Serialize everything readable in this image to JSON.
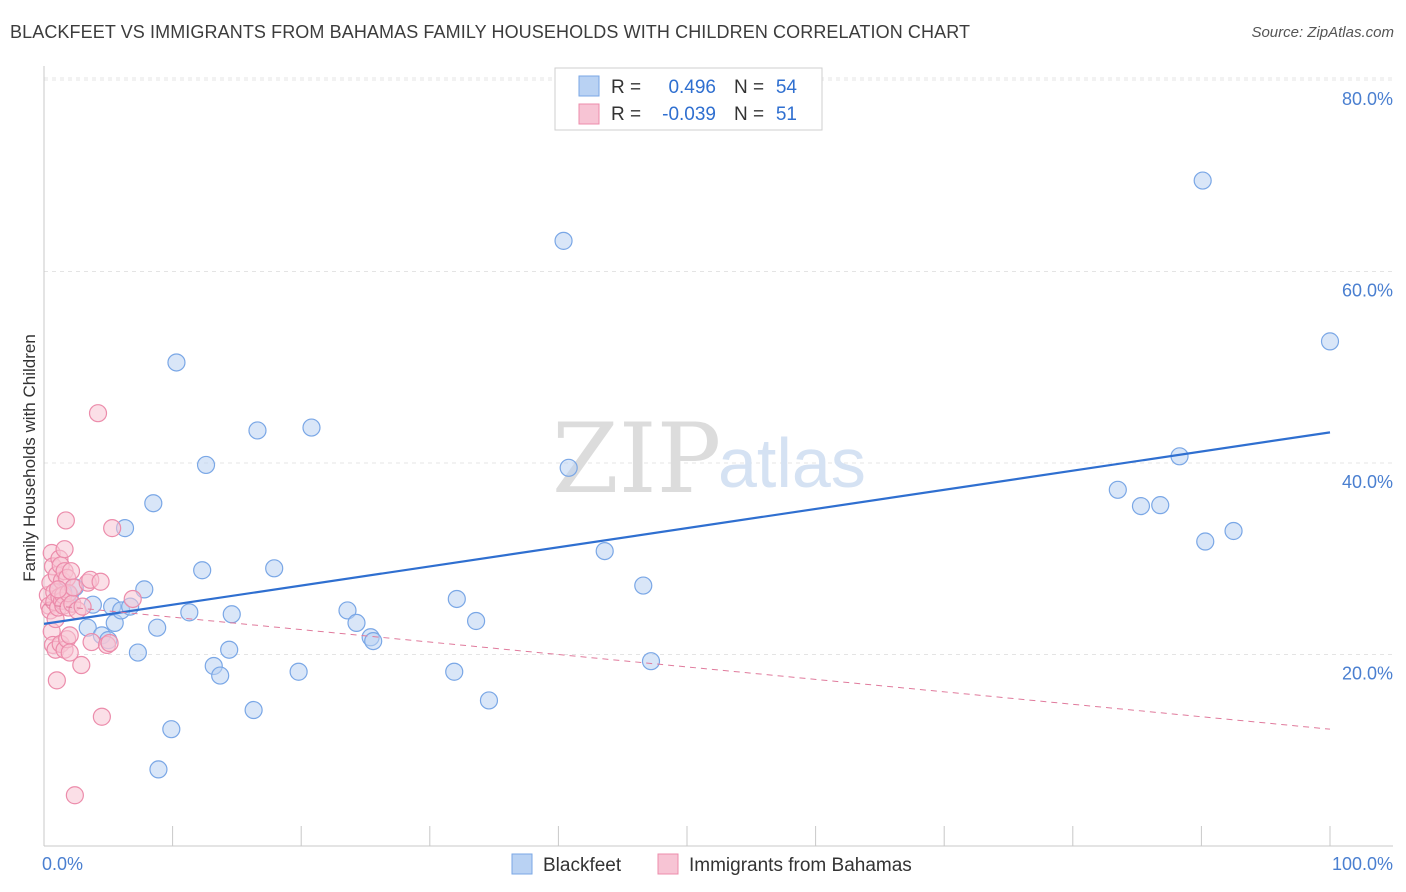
{
  "title": "BLACKFEET VS IMMIGRANTS FROM BAHAMAS FAMILY HOUSEHOLDS WITH CHILDREN CORRELATION CHART",
  "source": "Source: ZipAtlas.com",
  "watermark": {
    "zip": "ZIP",
    "atlas": "atlas"
  },
  "legend": {
    "r_label": "R =",
    "n_label": "N =",
    "rows": [
      {
        "r": "0.496",
        "n": "54",
        "color": "#7aa7e6",
        "fill": "#b9d2f3"
      },
      {
        "r": "-0.039",
        "n": "51",
        "color": "#ec8cab",
        "fill": "#f7c4d4"
      }
    ]
  },
  "chart_data": {
    "type": "scatter",
    "title": "BLACKFEET VS IMMIGRANTS FROM BAHAMAS FAMILY HOUSEHOLDS WITH CHILDREN CORRELATION CHART",
    "xlabel": "",
    "ylabel": "Family Households with Children",
    "xlim": [
      0,
      100
    ],
    "ylim": [
      0,
      82
    ],
    "x_tick_labels": [
      "0.0%",
      "100.0%"
    ],
    "y_ticks": [
      20,
      40,
      60,
      80
    ],
    "y_tick_labels": [
      "20.0%",
      "40.0%",
      "60.0%",
      "80.0%"
    ],
    "series": [
      {
        "name": "Blackfeet",
        "color": "#7aa7e6",
        "fill": "#b9d2f3",
        "line": "#2f6fd0",
        "trend": {
          "x0": 0,
          "y0": 23.2,
          "x1": 100,
          "y1": 43.2
        },
        "points": [
          [
            1.1,
            26.5
          ],
          [
            1.8,
            25.5
          ],
          [
            2.0,
            26.2
          ],
          [
            2.4,
            27.0
          ],
          [
            3.4,
            22.8
          ],
          [
            3.8,
            25.2
          ],
          [
            4.5,
            22.0
          ],
          [
            5.0,
            21.5
          ],
          [
            5.3,
            25.0
          ],
          [
            5.5,
            23.3
          ],
          [
            6.0,
            24.6
          ],
          [
            6.3,
            33.2
          ],
          [
            7.3,
            20.2
          ],
          [
            7.8,
            26.8
          ],
          [
            8.5,
            35.8
          ],
          [
            8.8,
            22.8
          ],
          [
            9.9,
            12.2
          ],
          [
            10.3,
            50.5
          ],
          [
            11.3,
            24.4
          ],
          [
            12.3,
            28.8
          ],
          [
            12.6,
            39.8
          ],
          [
            13.2,
            18.8
          ],
          [
            13.7,
            17.8
          ],
          [
            14.4,
            20.5
          ],
          [
            14.6,
            24.2
          ],
          [
            16.3,
            14.2
          ],
          [
            16.6,
            43.4
          ],
          [
            17.9,
            29.0
          ],
          [
            19.8,
            18.2
          ],
          [
            20.8,
            43.7
          ],
          [
            23.6,
            24.6
          ],
          [
            24.3,
            23.3
          ],
          [
            25.4,
            21.8
          ],
          [
            25.6,
            21.4
          ],
          [
            31.9,
            18.2
          ],
          [
            32.1,
            25.8
          ],
          [
            33.6,
            23.5
          ],
          [
            34.6,
            15.2
          ],
          [
            40.4,
            63.2
          ],
          [
            40.8,
            39.5
          ],
          [
            43.6,
            30.8
          ],
          [
            46.6,
            27.2
          ],
          [
            47.2,
            19.3
          ],
          [
            83.5,
            37.2
          ],
          [
            85.3,
            35.5
          ],
          [
            86.8,
            35.6
          ],
          [
            88.3,
            40.7
          ],
          [
            90.1,
            69.5
          ],
          [
            90.3,
            31.8
          ],
          [
            92.5,
            32.9
          ],
          [
            100.0,
            52.7
          ],
          [
            8.9,
            8.0
          ],
          [
            1.5,
            26.5
          ],
          [
            6.7,
            25.0
          ]
        ]
      },
      {
        "name": "Immigrants from Bahamas",
        "color": "#ec8cab",
        "fill": "#f7c4d4",
        "line": "#e07a9c",
        "trend": {
          "x0": 0,
          "y0": 25.2,
          "x1": 100,
          "y1": 12.2
        },
        "points": [
          [
            0.3,
            26.2
          ],
          [
            0.4,
            25.1
          ],
          [
            0.5,
            27.5
          ],
          [
            0.5,
            24.6
          ],
          [
            0.6,
            30.6
          ],
          [
            0.6,
            22.4
          ],
          [
            0.7,
            29.2
          ],
          [
            0.7,
            21.0
          ],
          [
            0.8,
            26.5
          ],
          [
            0.8,
            25.5
          ],
          [
            0.9,
            23.7
          ],
          [
            0.9,
            20.5
          ],
          [
            1.0,
            17.3
          ],
          [
            1.0,
            28.3
          ],
          [
            1.1,
            24.9
          ],
          [
            1.2,
            26.0
          ],
          [
            1.2,
            30.0
          ],
          [
            1.3,
            21.1
          ],
          [
            1.3,
            29.3
          ],
          [
            1.4,
            25.6
          ],
          [
            1.4,
            27.7
          ],
          [
            1.5,
            26.2
          ],
          [
            1.5,
            25.1
          ],
          [
            1.6,
            28.7
          ],
          [
            1.6,
            20.5
          ],
          [
            1.6,
            31.0
          ],
          [
            1.7,
            34.0
          ],
          [
            1.8,
            28.0
          ],
          [
            1.8,
            21.6
          ],
          [
            1.9,
            24.9
          ],
          [
            1.9,
            26.4
          ],
          [
            2.0,
            20.2
          ],
          [
            2.0,
            22.0
          ],
          [
            2.1,
            28.7
          ],
          [
            2.2,
            25.3
          ],
          [
            2.3,
            27.0
          ],
          [
            2.4,
            5.3
          ],
          [
            2.6,
            24.6
          ],
          [
            2.9,
            18.9
          ],
          [
            3.0,
            25.0
          ],
          [
            3.4,
            27.5
          ],
          [
            3.6,
            27.8
          ],
          [
            3.7,
            21.3
          ],
          [
            4.2,
            45.2
          ],
          [
            4.4,
            27.6
          ],
          [
            4.5,
            13.5
          ],
          [
            4.9,
            21.0
          ],
          [
            5.1,
            21.2
          ],
          [
            5.3,
            33.2
          ],
          [
            6.9,
            25.8
          ],
          [
            1.1,
            26.8
          ]
        ]
      }
    ]
  }
}
